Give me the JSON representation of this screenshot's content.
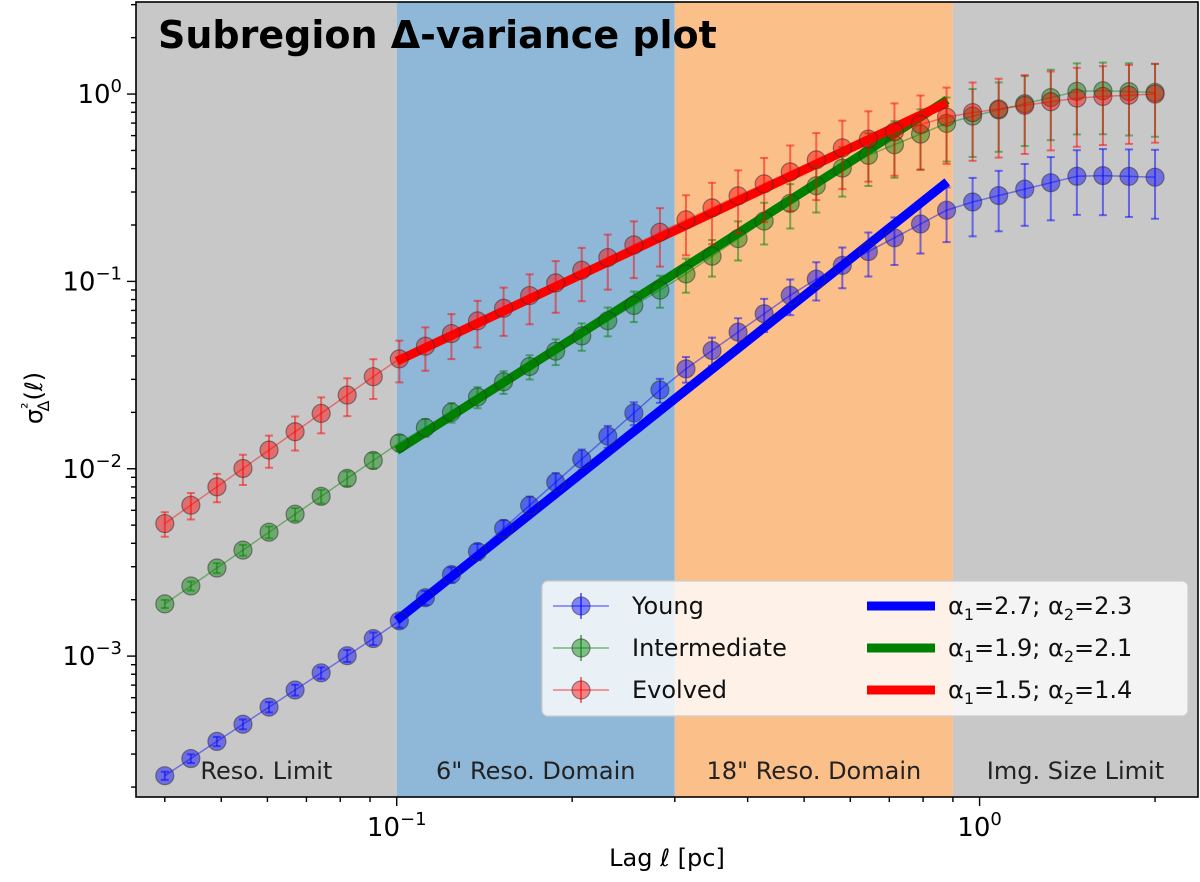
{
  "chart_data": {
    "type": "scatter",
    "title": "Subregion Δ-variance plot",
    "xlabel": "Lag ℓ [pc]",
    "ylabel": "σ²Δ(ℓ)",
    "xscale": "log",
    "yscale": "log",
    "xlim": [
      0.0357,
      2.37
    ],
    "ylim": [
      0.000177,
      3.1
    ],
    "xticks": [
      {
        "value": 0.1,
        "base": "10",
        "exp": "−1"
      },
      {
        "value": 1.0,
        "base": "10",
        "exp": "0"
      }
    ],
    "yticks": [
      {
        "value": 0.001,
        "base": "10",
        "exp": "−3"
      },
      {
        "value": 0.01,
        "base": "10",
        "exp": "−2"
      },
      {
        "value": 0.1,
        "base": "10",
        "exp": "−1"
      },
      {
        "value": 1.0,
        "base": "10",
        "exp": "0"
      }
    ],
    "regions": [
      {
        "label": "Reso. Limit",
        "x0": 0.0357,
        "x1": 0.1,
        "color": "#c8c8c8"
      },
      {
        "label": "6\" Reso. Domain",
        "x0": 0.1,
        "x1": 0.3,
        "color": "#8fb8d8"
      },
      {
        "label": "18\" Reso. Domain",
        "x0": 0.3,
        "x1": 0.9,
        "color": "#fbbf8a"
      },
      {
        "label": "Img. Size Limit",
        "x0": 0.9,
        "x1": 2.37,
        "color": "#c8c8c8"
      }
    ],
    "lag_range": {
      "start": 0.04,
      "end": 2.0,
      "count": 39
    },
    "series": [
      {
        "name": "Young",
        "color": "#0000ff",
        "anchors": [
          [
            0.04,
            0.00023
          ],
          [
            0.1,
            0.0015
          ],
          [
            0.3,
            0.031
          ],
          [
            0.5,
            0.095
          ],
          [
            0.9,
            0.25
          ],
          [
            1.5,
            0.37
          ],
          [
            2.0,
            0.36
          ]
        ],
        "error_frac": [
          [
            0.04,
            0.05
          ],
          [
            0.1,
            0.08
          ],
          [
            0.3,
            0.15
          ],
          [
            0.6,
            0.25
          ],
          [
            1.0,
            0.35
          ],
          [
            2.0,
            0.4
          ]
        ],
        "fit": {
          "x0": 0.1,
          "y0": 0.00155,
          "x1": 0.88,
          "y1": 0.34
        }
      },
      {
        "name": "Intermediate",
        "color": "#008000",
        "anchors": [
          [
            0.04,
            0.0019
          ],
          [
            0.1,
            0.0135
          ],
          [
            0.3,
            0.1
          ],
          [
            0.6,
            0.43
          ],
          [
            0.9,
            0.72
          ],
          [
            1.5,
            1.05
          ],
          [
            2.0,
            1.02
          ]
        ],
        "error_frac": [
          [
            0.04,
            0.05
          ],
          [
            0.1,
            0.1
          ],
          [
            0.3,
            0.2
          ],
          [
            0.6,
            0.3
          ],
          [
            1.0,
            0.4
          ],
          [
            2.0,
            0.42
          ]
        ],
        "fit": {
          "x0": 0.1,
          "y0": 0.0125,
          "x1": 0.88,
          "y1": 0.93
        }
      },
      {
        "name": "Evolved",
        "color": "#ff0000",
        "anchors": [
          [
            0.04,
            0.0051
          ],
          [
            0.1,
            0.038
          ],
          [
            0.3,
            0.2
          ],
          [
            0.6,
            0.54
          ],
          [
            0.9,
            0.77
          ],
          [
            1.5,
            0.96
          ],
          [
            2.0,
            1.0
          ]
        ],
        "error_frac": [
          [
            0.04,
            0.15
          ],
          [
            0.1,
            0.25
          ],
          [
            0.3,
            0.35
          ],
          [
            0.6,
            0.4
          ],
          [
            1.0,
            0.45
          ],
          [
            2.0,
            0.45
          ]
        ],
        "fit": {
          "x0": 0.1,
          "y0": 0.0375,
          "x1": 0.88,
          "y1": 0.9
        }
      }
    ],
    "legend": {
      "placement": "lower-right",
      "fit_entries": [
        {
          "color": "#0000ff",
          "a1": "2.7",
          "a2": "2.3"
        },
        {
          "color": "#008000",
          "a1": "1.9",
          "a2": "2.1"
        },
        {
          "color": "#ff0000",
          "a1": "1.5",
          "a2": "1.4"
        }
      ],
      "alpha_symbol": "α",
      "sub1": "1",
      "sub2": "2"
    }
  }
}
